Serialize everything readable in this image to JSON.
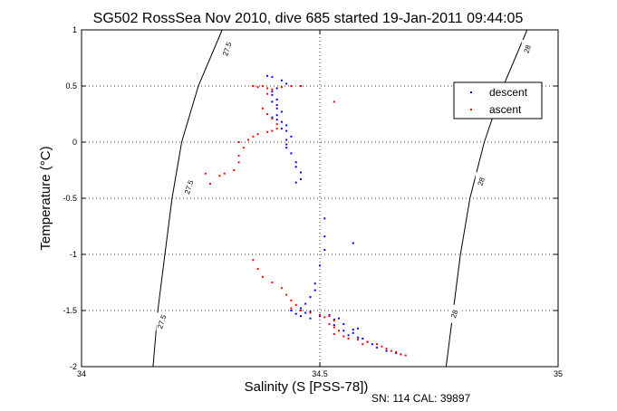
{
  "chart_data": {
    "type": "scatter",
    "title": "SG502 RossSea Nov 2010, dive 685 started 19-Jan-2011 09:44:05",
    "xlabel": "Salinity (S [PSS-78])",
    "ylabel": "Temperature (°C)",
    "xlim": [
      34,
      35
    ],
    "ylim": [
      -2,
      1
    ],
    "x_ticks": [
      "34",
      "34.5",
      "35"
    ],
    "y_ticks": [
      "1",
      "0.5",
      "0",
      "-0.5",
      "-1",
      "-1.5",
      "-2"
    ],
    "grid": "dotted",
    "legend_position": "top-right",
    "footer": "SN: 114  CAL: 39897",
    "contours": [
      {
        "label": "27.5",
        "points": [
          [
            34.295,
            1.0
          ],
          [
            34.245,
            0.5
          ],
          [
            34.21,
            0.0
          ],
          [
            34.19,
            -0.5
          ],
          [
            34.175,
            -1.0
          ],
          [
            34.16,
            -1.5
          ],
          [
            34.15,
            -2.0
          ]
        ]
      },
      {
        "label": "28",
        "points": [
          [
            34.935,
            1.0
          ],
          [
            34.885,
            0.5
          ],
          [
            34.845,
            0.0
          ],
          [
            34.815,
            -0.5
          ],
          [
            34.795,
            -1.0
          ],
          [
            34.78,
            -1.5
          ],
          [
            34.765,
            -2.0
          ]
        ]
      }
    ],
    "contour_labels": [
      {
        "text": "27.5",
        "x": 34.305,
        "y": 0.83
      },
      {
        "text": "27.5",
        "x": 34.225,
        "y": -0.4
      },
      {
        "text": "27.5",
        "x": 34.168,
        "y": -1.6
      },
      {
        "text": "28",
        "x": 34.935,
        "y": 0.83
      },
      {
        "text": "28",
        "x": 34.838,
        "y": -0.35
      },
      {
        "text": "28",
        "x": 34.782,
        "y": -1.53
      }
    ],
    "series": [
      {
        "name": "descent",
        "color": "#0000ff",
        "points": [
          [
            34.39,
            0.59
          ],
          [
            34.4,
            0.58
          ],
          [
            34.42,
            0.55
          ],
          [
            34.43,
            0.52
          ],
          [
            34.41,
            0.48
          ],
          [
            34.4,
            0.45
          ],
          [
            34.4,
            0.42
          ],
          [
            34.41,
            0.38
          ],
          [
            34.4,
            0.36
          ],
          [
            34.41,
            0.33
          ],
          [
            34.41,
            0.3
          ],
          [
            34.42,
            0.27
          ],
          [
            34.41,
            0.24
          ],
          [
            34.4,
            0.22
          ],
          [
            34.41,
            0.2
          ],
          [
            34.42,
            0.18
          ],
          [
            34.43,
            0.15
          ],
          [
            34.42,
            0.12
          ],
          [
            34.43,
            0.1
          ],
          [
            34.44,
            0.05
          ],
          [
            34.43,
            0.02
          ],
          [
            34.43,
            -0.02
          ],
          [
            34.43,
            -0.05
          ],
          [
            34.44,
            -0.1
          ],
          [
            34.45,
            -0.18
          ],
          [
            34.45,
            -0.22
          ],
          [
            34.46,
            -0.27
          ],
          [
            34.46,
            -0.33
          ],
          [
            34.45,
            -0.36
          ],
          [
            34.51,
            -0.68
          ],
          [
            34.51,
            -0.84
          ],
          [
            34.51,
            -0.96
          ],
          [
            34.57,
            -0.9
          ],
          [
            34.5,
            -1.1
          ],
          [
            34.49,
            -1.26
          ],
          [
            34.49,
            -1.32
          ],
          [
            34.48,
            -1.38
          ],
          [
            34.47,
            -1.44
          ],
          [
            34.46,
            -1.48
          ],
          [
            34.44,
            -1.5
          ],
          [
            34.45,
            -1.53
          ],
          [
            34.47,
            -1.52
          ],
          [
            34.48,
            -1.51
          ],
          [
            34.46,
            -1.55
          ],
          [
            34.48,
            -1.57
          ],
          [
            34.5,
            -1.55
          ],
          [
            34.52,
            -1.54
          ],
          [
            34.53,
            -1.58
          ],
          [
            34.54,
            -1.57
          ],
          [
            34.55,
            -1.62
          ],
          [
            34.53,
            -1.63
          ],
          [
            34.55,
            -1.68
          ],
          [
            34.57,
            -1.67
          ],
          [
            34.58,
            -1.66
          ],
          [
            34.57,
            -1.7
          ],
          [
            34.56,
            -1.72
          ],
          [
            34.58,
            -1.74
          ],
          [
            34.59,
            -1.75
          ],
          [
            34.6,
            -1.78
          ],
          [
            34.61,
            -1.8
          ],
          [
            34.62,
            -1.83
          ],
          [
            34.64,
            -1.86
          ],
          [
            34.66,
            -1.88
          ],
          [
            34.67,
            -1.89
          ]
        ]
      },
      {
        "name": "ascent",
        "color": "#ff0000",
        "points": [
          [
            34.36,
            0.5
          ],
          [
            34.37,
            0.49
          ],
          [
            34.38,
            0.5
          ],
          [
            34.39,
            0.48
          ],
          [
            34.4,
            0.47
          ],
          [
            34.42,
            0.49
          ],
          [
            34.44,
            0.5
          ],
          [
            34.46,
            0.5
          ],
          [
            34.53,
            0.36
          ],
          [
            34.39,
            0.43
          ],
          [
            34.38,
            0.3
          ],
          [
            34.39,
            0.25
          ],
          [
            34.4,
            0.21
          ],
          [
            34.41,
            0.16
          ],
          [
            34.41,
            0.12
          ],
          [
            34.4,
            0.1
          ],
          [
            34.39,
            0.09
          ],
          [
            34.37,
            0.07
          ],
          [
            34.36,
            0.05
          ],
          [
            34.35,
            0.02
          ],
          [
            34.33,
            0.0
          ],
          [
            34.34,
            -0.05
          ],
          [
            34.33,
            -0.12
          ],
          [
            34.33,
            -0.18
          ],
          [
            34.32,
            -0.25
          ],
          [
            34.3,
            -0.28
          ],
          [
            34.29,
            -0.3
          ],
          [
            34.27,
            -0.37
          ],
          [
            34.26,
            -0.28
          ],
          [
            34.36,
            -1.05
          ],
          [
            34.37,
            -1.13
          ],
          [
            34.38,
            -1.2
          ],
          [
            34.4,
            -1.25
          ],
          [
            34.42,
            -1.3
          ],
          [
            34.43,
            -1.36
          ],
          [
            34.44,
            -1.41
          ],
          [
            34.45,
            -1.45
          ],
          [
            34.44,
            -1.48
          ],
          [
            34.46,
            -1.5
          ],
          [
            34.48,
            -1.52
          ],
          [
            34.5,
            -1.54
          ],
          [
            34.51,
            -1.56
          ],
          [
            34.52,
            -1.55
          ],
          [
            34.53,
            -1.59
          ],
          [
            34.52,
            -1.62
          ],
          [
            34.53,
            -1.65
          ],
          [
            34.54,
            -1.68
          ],
          [
            34.53,
            -1.71
          ],
          [
            34.55,
            -1.73
          ],
          [
            34.56,
            -1.75
          ],
          [
            34.58,
            -1.76
          ],
          [
            34.59,
            -1.8
          ],
          [
            34.6,
            -1.78
          ],
          [
            34.62,
            -1.8
          ],
          [
            34.63,
            -1.82
          ],
          [
            34.64,
            -1.84
          ],
          [
            34.65,
            -1.86
          ],
          [
            34.66,
            -1.87
          ],
          [
            34.67,
            -1.89
          ],
          [
            34.68,
            -1.9
          ]
        ]
      }
    ]
  }
}
